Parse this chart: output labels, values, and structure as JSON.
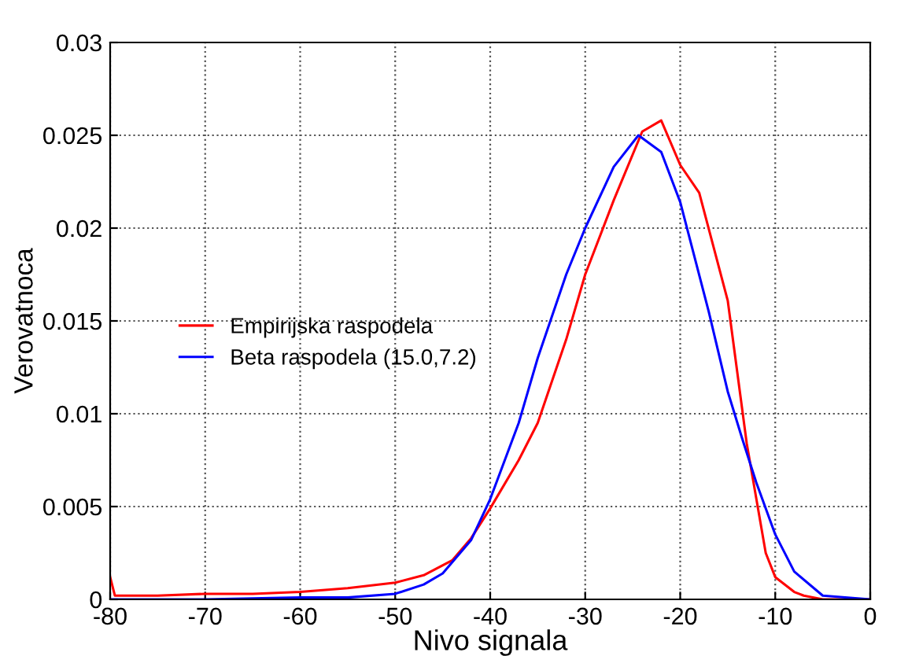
{
  "chart_data": {
    "type": "line",
    "xlabel": "Nivo signala",
    "ylabel": "Verovatnoca",
    "xlim": [
      -80,
      0
    ],
    "ylim": [
      0,
      0.03
    ],
    "xticks": [
      -80,
      -70,
      -60,
      -50,
      -40,
      -30,
      -20,
      -10,
      0
    ],
    "yticks": [
      0,
      0.005,
      0.01,
      0.015,
      0.02,
      0.025,
      0.03
    ],
    "grid": true,
    "legend": "left",
    "line_style": "solid",
    "marker": "none",
    "series": [
      {
        "name": "Empirijska raspodela",
        "color": "#ff0000",
        "x": [
          -80,
          -79.5,
          -75,
          -70,
          -65,
          -60,
          -55,
          -50,
          -47,
          -44,
          -42,
          -40,
          -37,
          -35,
          -32,
          -30,
          -27,
          -24,
          -22,
          -20,
          -18,
          -15,
          -13,
          -11,
          -10,
          -8,
          -7,
          -5,
          0
        ],
        "values": [
          0.0012,
          0.0002,
          0.0002,
          0.0003,
          0.0003,
          0.0004,
          0.0006,
          0.0009,
          0.0013,
          0.0021,
          0.0033,
          0.0049,
          0.0075,
          0.0095,
          0.014,
          0.0175,
          0.0215,
          0.0252,
          0.0258,
          0.0234,
          0.0219,
          0.0161,
          0.0084,
          0.0025,
          0.0012,
          0.0004,
          0.0002,
          0,
          0
        ]
      },
      {
        "name": "Beta raspodela (15.0,7.2)",
        "color": "#0000ff",
        "x": [
          -80,
          -70,
          -60,
          -55,
          -50,
          -47,
          -45,
          -42,
          -40,
          -37,
          -35,
          -32,
          -30,
          -27,
          -24.4,
          -22,
          -20,
          -17,
          -15,
          -13.5,
          -12,
          -10,
          -8,
          -5,
          0
        ],
        "values": [
          0,
          0,
          0.0001,
          0.0001,
          0.0003,
          0.0008,
          0.0014,
          0.0032,
          0.0054,
          0.0095,
          0.013,
          0.0175,
          0.02,
          0.0233,
          0.025,
          0.0241,
          0.0214,
          0.0155,
          0.0112,
          0.0087,
          0.0063,
          0.0035,
          0.0015,
          0.0002,
          0
        ]
      }
    ]
  }
}
